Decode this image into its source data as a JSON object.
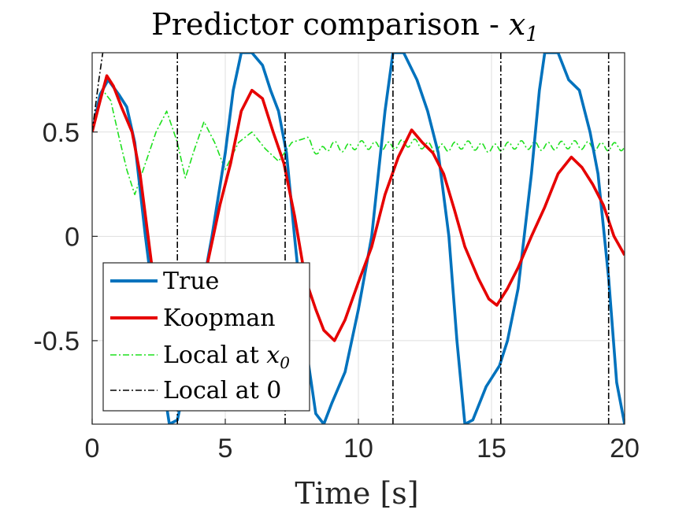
{
  "chart_data": {
    "type": "line",
    "title": "Predictor comparison - ",
    "title_var": "x",
    "title_sub": "1",
    "xlabel": "Time [s]",
    "ylabel": "",
    "xlim": [
      0,
      20
    ],
    "ylim": [
      -0.9,
      0.88
    ],
    "xticks": [
      0,
      5,
      10,
      15,
      20
    ],
    "xtick_labels": [
      "0",
      "5",
      "10",
      "15",
      "20"
    ],
    "yticks": [
      -0.5,
      0,
      0.5
    ],
    "ytick_labels": [
      "-0.5",
      "0",
      "0.5"
    ],
    "grid": true,
    "legend_position": "bottom-left",
    "series": [
      {
        "name": "True",
        "color": "#0072BD",
        "style": "solid",
        "points": [
          [
            0,
            0.5
          ],
          [
            0.3,
            0.68
          ],
          [
            0.6,
            0.75
          ],
          [
            1.0,
            0.68
          ],
          [
            1.3,
            0.62
          ],
          [
            1.6,
            0.45
          ],
          [
            2.0,
            0.0
          ],
          [
            2.3,
            -0.3
          ],
          [
            2.6,
            -0.65
          ],
          [
            2.9,
            -0.9
          ],
          [
            3.2,
            -0.88
          ],
          [
            3.5,
            -0.7
          ],
          [
            4.0,
            -0.35
          ],
          [
            4.5,
            0.0
          ],
          [
            5.0,
            0.4
          ],
          [
            5.3,
            0.7
          ],
          [
            5.6,
            0.88
          ],
          [
            6.0,
            0.88
          ],
          [
            6.4,
            0.82
          ],
          [
            6.7,
            0.7
          ],
          [
            7.0,
            0.6
          ],
          [
            7.3,
            0.4
          ],
          [
            7.6,
            0.0
          ],
          [
            8.0,
            -0.5
          ],
          [
            8.4,
            -0.85
          ],
          [
            8.7,
            -0.9
          ],
          [
            9.0,
            -0.8
          ],
          [
            9.5,
            -0.65
          ],
          [
            10.0,
            -0.35
          ],
          [
            10.5,
            0.0
          ],
          [
            11.0,
            0.6
          ],
          [
            11.3,
            0.88
          ],
          [
            11.7,
            0.88
          ],
          [
            12.2,
            0.75
          ],
          [
            12.6,
            0.6
          ],
          [
            13.0,
            0.4
          ],
          [
            13.4,
            0.0
          ],
          [
            13.7,
            -0.5
          ],
          [
            14.0,
            -0.9
          ],
          [
            14.3,
            -0.88
          ],
          [
            14.8,
            -0.72
          ],
          [
            15.3,
            -0.62
          ],
          [
            15.6,
            -0.5
          ],
          [
            16.0,
            -0.25
          ],
          [
            16.5,
            0.3
          ],
          [
            16.8,
            0.7
          ],
          [
            17.0,
            0.88
          ],
          [
            17.5,
            0.88
          ],
          [
            17.9,
            0.75
          ],
          [
            18.3,
            0.7
          ],
          [
            18.7,
            0.5
          ],
          [
            19.0,
            0.3
          ],
          [
            19.4,
            -0.2
          ],
          [
            19.7,
            -0.7
          ],
          [
            20.0,
            -0.9
          ]
        ]
      },
      {
        "name": "Koopman",
        "color": "#E60000",
        "style": "solid",
        "points": [
          [
            0,
            0.5
          ],
          [
            0.3,
            0.65
          ],
          [
            0.55,
            0.77
          ],
          [
            0.8,
            0.72
          ],
          [
            1.1,
            0.62
          ],
          [
            1.5,
            0.5
          ],
          [
            1.8,
            0.3
          ],
          [
            2.1,
            0.0
          ],
          [
            2.4,
            -0.3
          ],
          [
            2.7,
            -0.55
          ],
          [
            3.0,
            -0.75
          ],
          [
            3.3,
            -0.72
          ],
          [
            3.8,
            -0.45
          ],
          [
            4.3,
            -0.15
          ],
          [
            4.8,
            0.15
          ],
          [
            5.2,
            0.35
          ],
          [
            5.6,
            0.6
          ],
          [
            6.0,
            0.7
          ],
          [
            6.4,
            0.66
          ],
          [
            6.8,
            0.5
          ],
          [
            7.2,
            0.35
          ],
          [
            7.6,
            0.1
          ],
          [
            8.0,
            -0.2
          ],
          [
            8.4,
            -0.35
          ],
          [
            8.7,
            -0.45
          ],
          [
            9.1,
            -0.5
          ],
          [
            9.5,
            -0.4
          ],
          [
            10.0,
            -0.22
          ],
          [
            10.5,
            -0.05
          ],
          [
            11.0,
            0.2
          ],
          [
            11.5,
            0.38
          ],
          [
            12.0,
            0.51
          ],
          [
            12.4,
            0.45
          ],
          [
            12.8,
            0.4
          ],
          [
            13.2,
            0.3
          ],
          [
            13.6,
            0.13
          ],
          [
            14.0,
            -0.05
          ],
          [
            14.5,
            -0.2
          ],
          [
            14.9,
            -0.3
          ],
          [
            15.2,
            -0.33
          ],
          [
            15.6,
            -0.25
          ],
          [
            16.0,
            -0.15
          ],
          [
            16.5,
            0.0
          ],
          [
            17.0,
            0.14
          ],
          [
            17.5,
            0.3
          ],
          [
            18.0,
            0.38
          ],
          [
            18.4,
            0.33
          ],
          [
            18.8,
            0.25
          ],
          [
            19.2,
            0.15
          ],
          [
            19.6,
            0.0
          ],
          [
            20.0,
            -0.09
          ]
        ]
      },
      {
        "name": "Local at x0",
        "name_text": "Local at ",
        "name_var": "x",
        "name_sub": "0",
        "color": "#1EE01E",
        "style": "dashdot",
        "points": [
          [
            0,
            0.5
          ],
          [
            0.4,
            0.7
          ],
          [
            0.7,
            0.65
          ],
          [
            1.0,
            0.48
          ],
          [
            1.3,
            0.32
          ],
          [
            1.6,
            0.2
          ],
          [
            2.0,
            0.35
          ],
          [
            2.4,
            0.5
          ],
          [
            2.8,
            0.6
          ],
          [
            3.2,
            0.45
          ],
          [
            3.5,
            0.28
          ],
          [
            3.8,
            0.4
          ],
          [
            4.2,
            0.55
          ],
          [
            4.6,
            0.45
          ],
          [
            5.0,
            0.32
          ],
          [
            5.5,
            0.45
          ],
          [
            6.0,
            0.5
          ],
          [
            6.5,
            0.42
          ],
          [
            7.0,
            0.36
          ],
          [
            7.5,
            0.45
          ],
          [
            8.0,
            0.47
          ],
          [
            8.5,
            0.4
          ],
          [
            9.0,
            0.44
          ],
          [
            9.5,
            0.42
          ],
          [
            10.0,
            0.44
          ],
          [
            11.0,
            0.43
          ],
          [
            12.0,
            0.45
          ],
          [
            13.0,
            0.42
          ],
          [
            14.0,
            0.44
          ],
          [
            15.0,
            0.42
          ],
          [
            16.0,
            0.44
          ],
          [
            17.0,
            0.43
          ],
          [
            18.0,
            0.44
          ],
          [
            19.0,
            0.43
          ],
          [
            20.0,
            0.43
          ]
        ],
        "oscillation_amplitude": 0.02,
        "oscillation_period": 0.5
      },
      {
        "name": "Local at 0",
        "color": "#000000",
        "style": "dashdot",
        "segments": [
          [
            [
              0.0,
              0.5
            ],
            [
              0.25,
              0.75
            ],
            [
              0.4,
              0.88
            ]
          ],
          [
            [
              3.2,
              0.88
            ],
            [
              3.2,
              -0.9
            ]
          ],
          [
            [
              7.25,
              0.88
            ],
            [
              7.25,
              -0.9
            ]
          ],
          [
            [
              11.3,
              0.88
            ],
            [
              11.3,
              -0.9
            ]
          ],
          [
            [
              15.35,
              0.88
            ],
            [
              15.35,
              -0.9
            ]
          ],
          [
            [
              19.4,
              0.88
            ],
            [
              19.4,
              -0.9
            ]
          ]
        ]
      }
    ]
  }
}
